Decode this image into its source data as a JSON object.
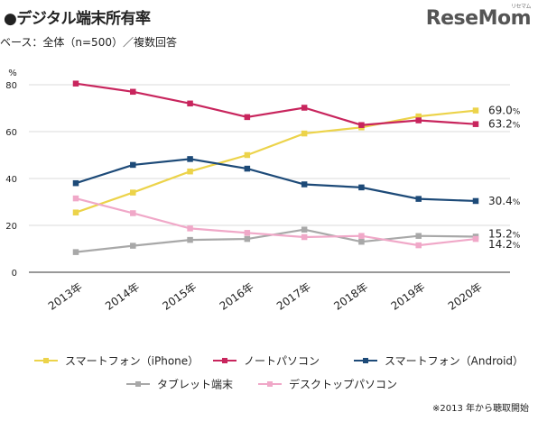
{
  "header": {
    "title": "●デジタル端末所有率",
    "subtitle": "ベース：全体（n=500）／複数回答",
    "brand": "ReseMom",
    "brand_sub": "リセマム"
  },
  "footnote": "※2013 年から聴取開始",
  "chart_data": {
    "type": "line",
    "y_unit": "%",
    "ylim": [
      0,
      80
    ],
    "yticks": [
      0,
      20,
      40,
      60,
      80
    ],
    "grid": "horizontal",
    "categories": [
      "2013年",
      "2014年",
      "2015年",
      "2016年",
      "2017年",
      "2018年",
      "2019年",
      "2020年"
    ],
    "legend_position": "bottom",
    "series": [
      {
        "name": "スマートフォン（iPhone）",
        "color": "#ecd34a",
        "values": [
          25.5,
          34,
          43,
          50,
          59.2,
          61.8,
          66.5,
          69.0
        ],
        "end_label": "69.0",
        "end_label_unit": "%"
      },
      {
        "name": "ノートパソコン",
        "color": "#c8255d",
        "values": [
          80.5,
          77,
          72,
          66.2,
          70.2,
          62.8,
          64.8,
          63.2
        ],
        "end_label": "63.2",
        "end_label_unit": "%"
      },
      {
        "name": "スマートフォン（Android）",
        "color": "#1d4a78",
        "values": [
          38,
          45.8,
          48.3,
          44.2,
          37.5,
          36.2,
          31.3,
          30.4
        ],
        "end_label": "30.4",
        "end_label_unit": "%"
      },
      {
        "name": "タブレット端末",
        "color": "#a8a8a8",
        "values": [
          8.6,
          11.3,
          13.8,
          14.2,
          18.2,
          13.0,
          15.5,
          15.2
        ],
        "end_label": "15.2",
        "end_label_unit": "%"
      },
      {
        "name": "デスクトップパソコン",
        "color": "#f0a8c8",
        "values": [
          31.5,
          25.2,
          18.7,
          16.8,
          15.0,
          15.5,
          11.5,
          14.2
        ],
        "end_label": "14.2",
        "end_label_unit": "%"
      }
    ]
  }
}
